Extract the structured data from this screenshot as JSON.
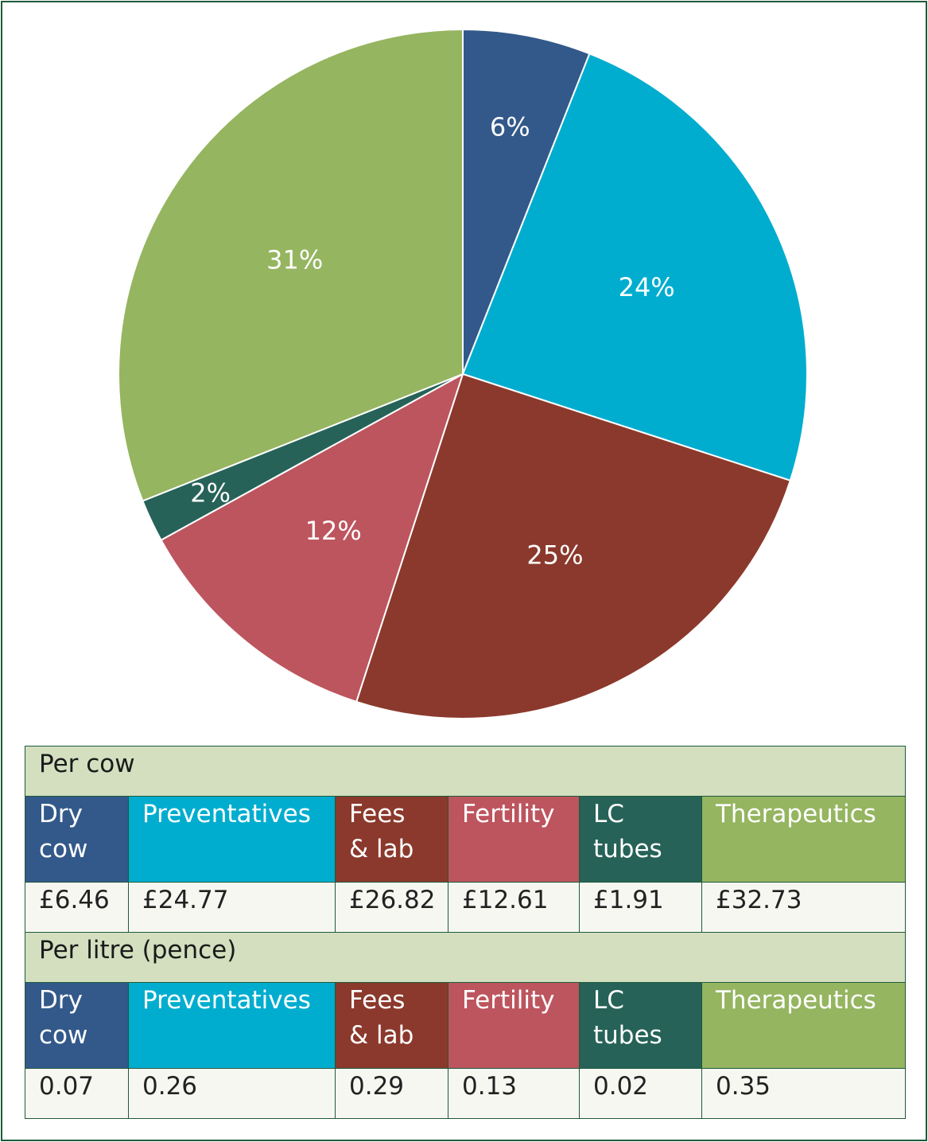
{
  "chart_data": {
    "type": "pie",
    "slices": [
      {
        "key": "dry_cow",
        "label": "Dry cow",
        "percent": 6,
        "color": "#33598a"
      },
      {
        "key": "preventatives",
        "label": "Preventatives",
        "percent": 24,
        "color": "#00adcf"
      },
      {
        "key": "fees_lab",
        "label": "Fees & lab",
        "percent": 25,
        "color": "#8b392c"
      },
      {
        "key": "fertility",
        "label": "Fertility",
        "percent": 12,
        "color": "#bd555e"
      },
      {
        "key": "lc_tubes",
        "label": "LC tubes",
        "percent": 2,
        "color": "#266257"
      },
      {
        "key": "therapeutics",
        "label": "Therapeutics",
        "percent": 31,
        "color": "#95b560"
      }
    ],
    "percent_labels": [
      "6%",
      "24%",
      "25%",
      "12%",
      "2%",
      "31%"
    ]
  },
  "table": {
    "columns": [
      {
        "line1": "Dry",
        "line2": "cow",
        "color": "#33598a"
      },
      {
        "line1": "Preventatives",
        "line2": "",
        "color": "#00adcf"
      },
      {
        "line1": "Fees",
        "line2": "& lab",
        "color": "#8b392c"
      },
      {
        "line1": "Fertility",
        "line2": "",
        "color": "#bd555e"
      },
      {
        "line1": "LC",
        "line2": "tubes",
        "color": "#266257"
      },
      {
        "line1": "Therapeutics",
        "line2": "",
        "color": "#95b560"
      }
    ],
    "sections": [
      {
        "title": "Per cow",
        "values": [
          "£6.46",
          "£24.77",
          "£26.82",
          "£12.61",
          "£1.91",
          "£32.73"
        ]
      },
      {
        "title": "Per litre (pence)",
        "values": [
          "0.07",
          "0.26",
          "0.29",
          "0.13",
          "0.02",
          "0.35"
        ]
      }
    ]
  }
}
